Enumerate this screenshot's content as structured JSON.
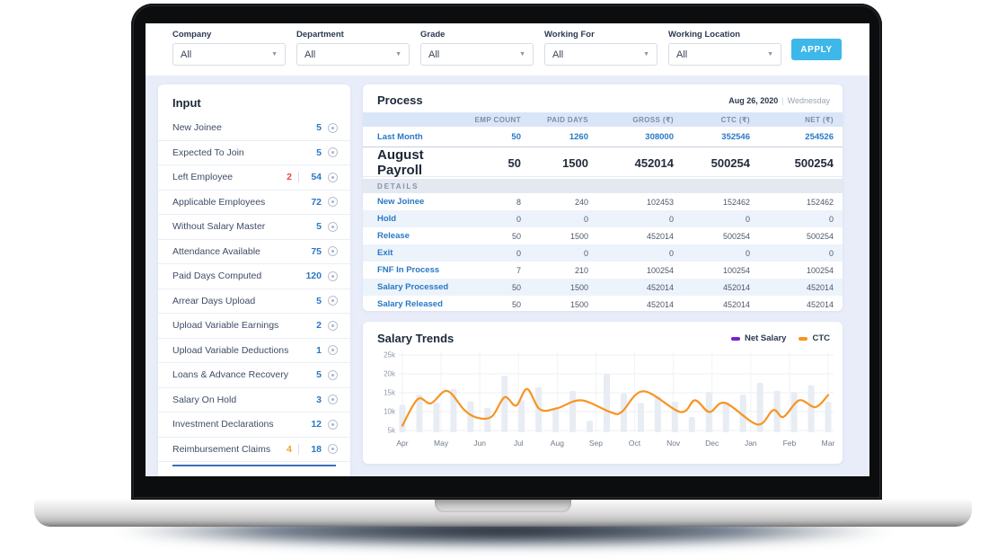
{
  "filters": {
    "items": [
      {
        "label": "Company",
        "value": "All"
      },
      {
        "label": "Department",
        "value": "All"
      },
      {
        "label": "Grade",
        "value": "All"
      },
      {
        "label": "Working For",
        "value": "All"
      },
      {
        "label": "Working Location",
        "value": "All"
      }
    ],
    "apply_label": "APPLY"
  },
  "input_panel": {
    "title": "Input",
    "items": [
      {
        "label": "New Joinee",
        "value": "5"
      },
      {
        "label": "Expected To Join",
        "value": "5"
      },
      {
        "label": "Left Employee",
        "warn": "2",
        "warn_color": "#e8463f",
        "value": "54"
      },
      {
        "label": "Applicable Employees",
        "value": "72"
      },
      {
        "label": "Without Salary Master",
        "value": "5"
      },
      {
        "label": "Attendance Available",
        "value": "75"
      },
      {
        "label": "Paid Days Computed",
        "value": "120"
      },
      {
        "label": "Arrear Days Upload",
        "value": "5"
      },
      {
        "label": "Upload Variable Earnings",
        "value": "2"
      },
      {
        "label": "Upload Variable Deductions",
        "value": "1"
      },
      {
        "label": "Loans & Advance Recovery",
        "value": "5"
      },
      {
        "label": "Salary On Hold",
        "value": "3"
      },
      {
        "label": "Investment Declarations",
        "value": "12"
      },
      {
        "label": "Reimbursement Claims",
        "warn": "4",
        "warn_color": "#f59d27",
        "value": "18"
      }
    ]
  },
  "process": {
    "title": "Process",
    "date": "Aug 26, 2020",
    "date_sep": "|",
    "day": "Wednesday",
    "columns": [
      "EMP COUNT",
      "PAID DAYS",
      "GROSS (₹)",
      "CTC (₹)",
      "NET (₹)"
    ],
    "last_month": {
      "label": "Last Month",
      "values": [
        "50",
        "1260",
        "308000",
        "352546",
        "254526"
      ]
    },
    "current": {
      "label": "August Payroll",
      "values": [
        "50",
        "1500",
        "452014",
        "500254",
        "500254"
      ]
    },
    "details_label": "DETAILS",
    "details": [
      {
        "label": "New Joinee",
        "values": [
          "8",
          "240",
          "102453",
          "152462",
          "152462"
        ]
      },
      {
        "label": "Hold",
        "values": [
          "0",
          "0",
          "0",
          "0",
          "0"
        ]
      },
      {
        "label": "Release",
        "values": [
          "50",
          "1500",
          "452014",
          "500254",
          "500254"
        ]
      },
      {
        "label": "Exit",
        "values": [
          "0",
          "0",
          "0",
          "0",
          "0"
        ]
      },
      {
        "label": "FNF In Process",
        "values": [
          "7",
          "210",
          "100254",
          "100254",
          "100254"
        ]
      },
      {
        "label": "Salary Processed",
        "values": [
          "50",
          "1500",
          "452014",
          "452014",
          "452014"
        ]
      },
      {
        "label": "Salary Released",
        "values": [
          "50",
          "1500",
          "452014",
          "452014",
          "452014"
        ]
      }
    ]
  },
  "chart_data": {
    "type": "line+bar",
    "title": "Salary Trends",
    "legend": [
      {
        "label": "Net Salary",
        "color": "#7b1fd0"
      },
      {
        "label": "CTC",
        "color": "#f89422"
      }
    ],
    "x_ticks": [
      "Apr",
      "May",
      "Jun",
      "Jul",
      "Aug",
      "Sep",
      "Oct",
      "Nov",
      "Dec",
      "Jan",
      "Feb",
      "Mar"
    ],
    "y_ticks": [
      "5k",
      "10k",
      "15k",
      "20k",
      "25k"
    ],
    "ylim_k": [
      5,
      25
    ],
    "grid": true,
    "legend_position": "top-right",
    "unit": "k (thousands)",
    "bars": {
      "name": "Net Salary",
      "color": "#e8ecf3",
      "values_k": [
        11.8,
        14.5,
        12.3,
        16.0,
        12.7,
        11.0,
        19.5,
        13.0,
        16.5,
        11.0,
        15.5,
        7.6,
        20.0,
        14.8,
        12.3,
        14.0,
        12.6,
        8.6,
        15.2,
        12.6,
        14.5,
        17.6,
        15.5,
        15.2,
        17.0,
        12.6
      ]
    },
    "line": {
      "name": "CTC",
      "color": "#f89422",
      "points_frac_k": [
        [
          0.0,
          6.3
        ],
        [
          0.036,
          13.3
        ],
        [
          0.067,
          12.2
        ],
        [
          0.105,
          15.5
        ],
        [
          0.145,
          10.5
        ],
        [
          0.175,
          8.4
        ],
        [
          0.21,
          8.7
        ],
        [
          0.24,
          13.8
        ],
        [
          0.267,
          11.6
        ],
        [
          0.293,
          16.0
        ],
        [
          0.323,
          10.6
        ],
        [
          0.364,
          10.9
        ],
        [
          0.42,
          13.0
        ],
        [
          0.49,
          9.8
        ],
        [
          0.515,
          9.9
        ],
        [
          0.566,
          15.4
        ],
        [
          0.653,
          9.9
        ],
        [
          0.687,
          13.0
        ],
        [
          0.721,
          9.9
        ],
        [
          0.758,
          12.3
        ],
        [
          0.834,
          6.6
        ],
        [
          0.871,
          10.4
        ],
        [
          0.895,
          8.6
        ],
        [
          0.932,
          13.0
        ],
        [
          0.97,
          11.2
        ],
        [
          1.0,
          14.4
        ]
      ]
    }
  }
}
